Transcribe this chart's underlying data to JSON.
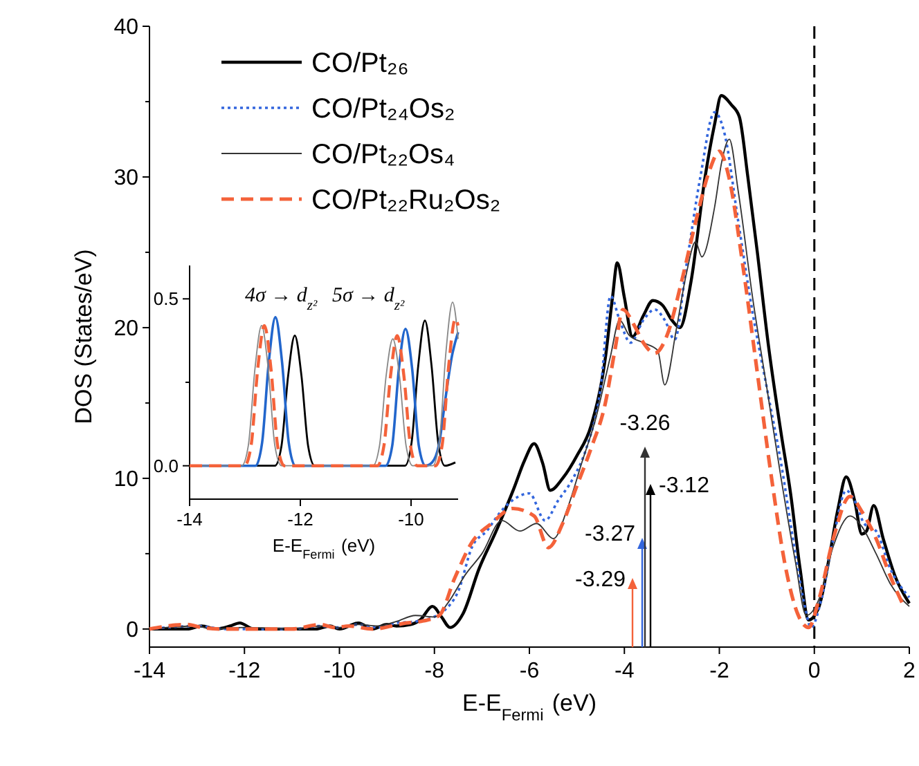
{
  "chart_data": [
    {
      "type": "line",
      "xlabel": "E-E$_{Fermi}$ (eV)",
      "ylabel": "DOS (States/eV)",
      "xlim": [
        -14,
        2
      ],
      "xticks": [
        -14,
        -12,
        -10,
        -8,
        -6,
        -4,
        -2,
        0,
        2
      ],
      "ylim": [
        -1.2,
        40
      ],
      "yticks": [
        0,
        {
          "value": 5,
          "label": null
        },
        10,
        {
          "value": 15,
          "label": null
        },
        20,
        {
          "value": 25,
          "label": null
        },
        30,
        {
          "value": 35,
          "label": null
        },
        40
      ],
      "legend": "top left",
      "ref_lines": [
        {
          "axis": "x",
          "value": 0,
          "line_style": "dashed",
          "color": "#000000"
        }
      ],
      "annotations": [
        "-3.12",
        "-3.27",
        "-3.26",
        "-3.29"
      ],
      "series": [
        {
          "name": "CO/Pt₂₆",
          "color": "#000000",
          "line_style": "solid",
          "x": [
            -14,
            -13.2,
            -12.9,
            -12.6,
            -12.3,
            -12.1,
            -11.8,
            -11,
            -10.5,
            -10.2,
            -10,
            -9.6,
            -9.3,
            -9,
            -8.8,
            -8.5,
            -8.3,
            -8.04,
            -7.85,
            -7.67,
            -7.4,
            -7.06,
            -6.7,
            -6.33,
            -6.1,
            -5.9,
            -5.72,
            -5.56,
            -5.3,
            -5.0,
            -4.7,
            -4.4,
            -4.25,
            -4.15,
            -4.0,
            -3.83,
            -3.6,
            -3.4,
            -3.2,
            -3.0,
            -2.83,
            -2.6,
            -2.3,
            -2.1,
            -1.96,
            -1.75,
            -1.58,
            -1.4,
            -1.2,
            -0.97,
            -0.7,
            -0.5,
            -0.3,
            -0.12,
            0.1,
            0.3,
            0.5,
            0.67,
            0.85,
            1.0,
            1.1,
            1.25,
            1.45,
            1.7,
            2.0
          ],
          "values": [
            0,
            0,
            0.2,
            0,
            0.2,
            0.4,
            0,
            0,
            0,
            0.2,
            0,
            0.4,
            0,
            0.3,
            0.2,
            0.3,
            0.6,
            1.5,
            0.8,
            0.1,
            1.0,
            4,
            6.5,
            9.3,
            11.2,
            12.3,
            11,
            9.2,
            10,
            11.5,
            13.5,
            18,
            22,
            24.3,
            22,
            19.4,
            20.8,
            21.8,
            21.5,
            20.5,
            20,
            23,
            30,
            33.5,
            35.4,
            34.8,
            34,
            30,
            25,
            18.9,
            13,
            9,
            4,
            0.6,
            1.5,
            4.5,
            8,
            10.1,
            8.5,
            6.3,
            6.5,
            8.2,
            6,
            3.5,
            1.7
          ]
        },
        {
          "name": "CO/Pt₂₄Os₂",
          "color": "#3366dd",
          "line_style": "dotted",
          "x": [
            -14,
            -13,
            -12.7,
            -12.4,
            -12,
            -11,
            -10.4,
            -10,
            -9.6,
            -9.2,
            -8.8,
            -8.4,
            -8.1,
            -7.8,
            -7.5,
            -7.2,
            -6.9,
            -6.6,
            -6.33,
            -6.0,
            -5.67,
            -5.4,
            -5.08,
            -4.8,
            -4.5,
            -4.29,
            -4.1,
            -3.87,
            -3.6,
            -3.36,
            -3.15,
            -2.94,
            -2.7,
            -2.4,
            -2.1,
            -1.9,
            -1.6,
            -1.3,
            -1.0,
            -0.7,
            -0.4,
            -0.2,
            -0.07,
            0.15,
            0.4,
            0.67,
            0.85,
            1.05,
            1.3,
            1.6,
            2.0
          ],
          "values": [
            0,
            0.2,
            0.1,
            0,
            0,
            0,
            0.2,
            0.1,
            0.3,
            0.1,
            0.4,
            0.5,
            0.7,
            1.2,
            2.5,
            5.5,
            6.5,
            7.8,
            8.6,
            9.0,
            7.2,
            8.5,
            10.0,
            12,
            16,
            22.1,
            20.5,
            19.0,
            20.5,
            21.2,
            20.5,
            19.2,
            24,
            30,
            34.3,
            33,
            27,
            21,
            16,
            11,
            5,
            1.5,
            0.1,
            2,
            6,
            9.2,
            8.5,
            7.0,
            6.5,
            4.0,
            2.1
          ]
        },
        {
          "name": "CO/Pt₂₂Os₄",
          "color": "#333333",
          "line_style": "solid",
          "x": [
            -14,
            -13,
            -12.7,
            -12,
            -11,
            -10.4,
            -10,
            -9.6,
            -9.2,
            -8.8,
            -8.4,
            -8.0,
            -7.7,
            -7.35,
            -7.0,
            -6.58,
            -6.2,
            -5.85,
            -5.49,
            -5.2,
            -4.9,
            -4.6,
            -4.3,
            -4.1,
            -3.9,
            -3.6,
            -3.3,
            -3.15,
            -2.9,
            -2.7,
            -2.5,
            -2.37,
            -2.1,
            -1.95,
            -1.79,
            -1.6,
            -1.3,
            -1.0,
            -0.7,
            -0.4,
            -0.17,
            0.1,
            0.4,
            0.75,
            1.0,
            1.3,
            1.6,
            2.0
          ],
          "values": [
            0,
            0.2,
            0,
            0.1,
            0,
            0.2,
            0.1,
            0.3,
            0.2,
            0.5,
            0.9,
            0.8,
            1.8,
            3.6,
            5,
            7.2,
            6.5,
            7.0,
            6.0,
            8,
            11,
            14,
            18,
            20.5,
            19.5,
            19,
            18.5,
            16.2,
            20,
            23.5,
            25.7,
            24.7,
            28,
            31,
            32.5,
            29,
            22,
            16,
            10,
            4.5,
            0.9,
            2,
            5.5,
            7.5,
            6.8,
            5,
            3,
            1.5
          ]
        },
        {
          "name": "CO/Pt₂₂Ru₂Os₂",
          "color": "#f4623a",
          "line_style": "dashed",
          "x": [
            -14,
            -13.2,
            -12.9,
            -12.5,
            -12,
            -11,
            -10.4,
            -10.1,
            -9.8,
            -9.3,
            -8.9,
            -8.6,
            -8.3,
            -7.9,
            -7.57,
            -7.2,
            -6.8,
            -6.35,
            -5.9,
            -5.6,
            -5.3,
            -5.0,
            -4.7,
            -4.4,
            -4.2,
            -4.03,
            -3.8,
            -3.6,
            -3.36,
            -3.1,
            -2.8,
            -2.5,
            -2.2,
            -2.0,
            -1.8,
            -1.5,
            -1.2,
            -0.9,
            -0.6,
            -0.35,
            -0.12,
            0.1,
            0.4,
            0.75,
            1.0,
            1.3,
            1.6,
            1.9
          ],
          "values": [
            0,
            0.3,
            0.1,
            0,
            0,
            0,
            0.3,
            0.1,
            0.2,
            0,
            0.2,
            0.4,
            0.5,
            0.9,
            3.4,
            5.8,
            7.0,
            8.0,
            7.5,
            5.4,
            7,
            9.5,
            12,
            15,
            18.5,
            21.2,
            20.2,
            19,
            18.3,
            19.5,
            23,
            27,
            30.5,
            31.7,
            30,
            24,
            17,
            10,
            4,
            1,
            0.1,
            2,
            6,
            8.8,
            7.8,
            6,
            3.5,
            1.4
          ]
        }
      ]
    },
    {
      "type": "line",
      "xlabel": "E-E$_{Fermi}$ (eV)",
      "xlim": [
        -14,
        -9.15
      ],
      "xticks": [
        -14,
        -12,
        -10
      ],
      "ylim": [
        -0.1,
        0.6
      ],
      "yticks": [
        {
          "value": 0,
          "label": "0.0"
        },
        {
          "value": 0.25,
          "label": null
        },
        {
          "value": 0.5,
          "label": "0.5"
        }
      ],
      "annotations": [
        "4σ → d$_{z²}$",
        "5σ → d$_{z²}$"
      ],
      "series": [
        {
          "color": "#000000",
          "line_style": "solid",
          "x": [
            -14,
            -12.46,
            -12.34,
            -12.22,
            -12.1,
            -11.98,
            -11.86,
            -11.74,
            -10.11,
            -9.99,
            -9.87,
            -9.75,
            -9.63,
            -9.51,
            -9.39,
            -9.2
          ],
          "values": [
            0,
            0,
            0.06,
            0.27,
            0.39,
            0.27,
            0.06,
            0,
            0,
            0.07,
            0.3,
            0.435,
            0.3,
            0.07,
            0,
            0.01
          ]
        },
        {
          "color": "#2266cc",
          "line_style": "solid",
          "x": [
            -14,
            -12.81,
            -12.69,
            -12.57,
            -12.45,
            -12.33,
            -12.21,
            -12.09,
            -10.46,
            -10.34,
            -10.22,
            -10.1,
            -9.98,
            -9.86,
            -9.74,
            -9.62,
            -9.5,
            -9.38,
            -9.26,
            -9.15
          ],
          "values": [
            0,
            0,
            0.07,
            0.31,
            0.445,
            0.31,
            0.07,
            0,
            0,
            0.06,
            0.29,
            0.41,
            0.29,
            0.06,
            0,
            0.01,
            0.06,
            0.2,
            0.33,
            0.4
          ]
        },
        {
          "color": "#888888",
          "line_style": "solid",
          "x": [
            -14,
            -13.06,
            -12.94,
            -12.82,
            -12.7,
            -12.58,
            -12.46,
            -12.34,
            -10.69,
            -10.57,
            -10.45,
            -10.33,
            -10.21,
            -10.09,
            -9.97,
            -9.61,
            -9.49,
            -9.37,
            -9.25,
            -9.15
          ],
          "values": [
            0,
            0,
            0.06,
            0.29,
            0.42,
            0.29,
            0.06,
            0,
            0,
            0.06,
            0.27,
            0.38,
            0.27,
            0.06,
            0,
            0,
            0.07,
            0.34,
            0.49,
            0.38
          ]
        },
        {
          "color": "#f4623a",
          "line_style": "dashed",
          "x": [
            -14,
            -13.01,
            -12.89,
            -12.77,
            -12.65,
            -12.53,
            -12.41,
            -12.29,
            -10.61,
            -10.49,
            -10.37,
            -10.25,
            -10.13,
            -10.01,
            -9.89,
            -9.56,
            -9.44,
            -9.32,
            -9.2,
            -9.15
          ],
          "values": [
            0,
            0,
            0.06,
            0.29,
            0.42,
            0.29,
            0.06,
            0,
            0,
            0.06,
            0.27,
            0.39,
            0.27,
            0.06,
            0,
            0,
            0.06,
            0.3,
            0.44,
            0.42
          ]
        }
      ]
    }
  ]
}
